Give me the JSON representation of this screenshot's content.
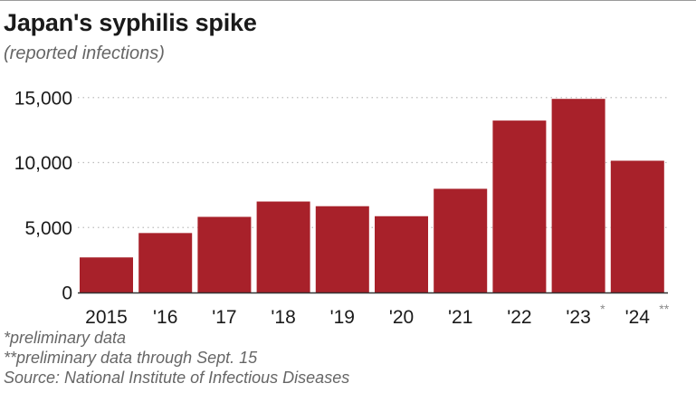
{
  "title": "Japan's syphilis spike",
  "subtitle": "(reported infections)",
  "footnotes": [
    "*preliminary data",
    "**preliminary data through Sept. 15",
    "Source: National Institute of Infectious Diseases"
  ],
  "colors": {
    "bar": "#a8212a",
    "grid": "#bdbdbd",
    "axis": "#333333"
  },
  "chart_data": {
    "type": "bar",
    "categories": [
      "2015",
      "'16",
      "'17",
      "'18",
      "'19",
      "'20",
      "'21",
      "'22",
      "'23",
      "'24"
    ],
    "category_marks": [
      "",
      "",
      "",
      "",
      "",
      "",
      "",
      "",
      "*",
      "**"
    ],
    "values": [
      2700,
      4575,
      5820,
      7000,
      6640,
      5870,
      7980,
      13230,
      14900,
      10140
    ],
    "yticks": [
      0,
      5000,
      10000,
      15000
    ],
    "ytick_labels": [
      "0",
      "5,000",
      "10,000",
      "15,000"
    ],
    "ylim": [
      0,
      16500
    ],
    "grid": true,
    "grid_style": "dotted",
    "legend": "none",
    "title": "Japan's syphilis spike",
    "xlabel": "",
    "ylabel": ""
  }
}
